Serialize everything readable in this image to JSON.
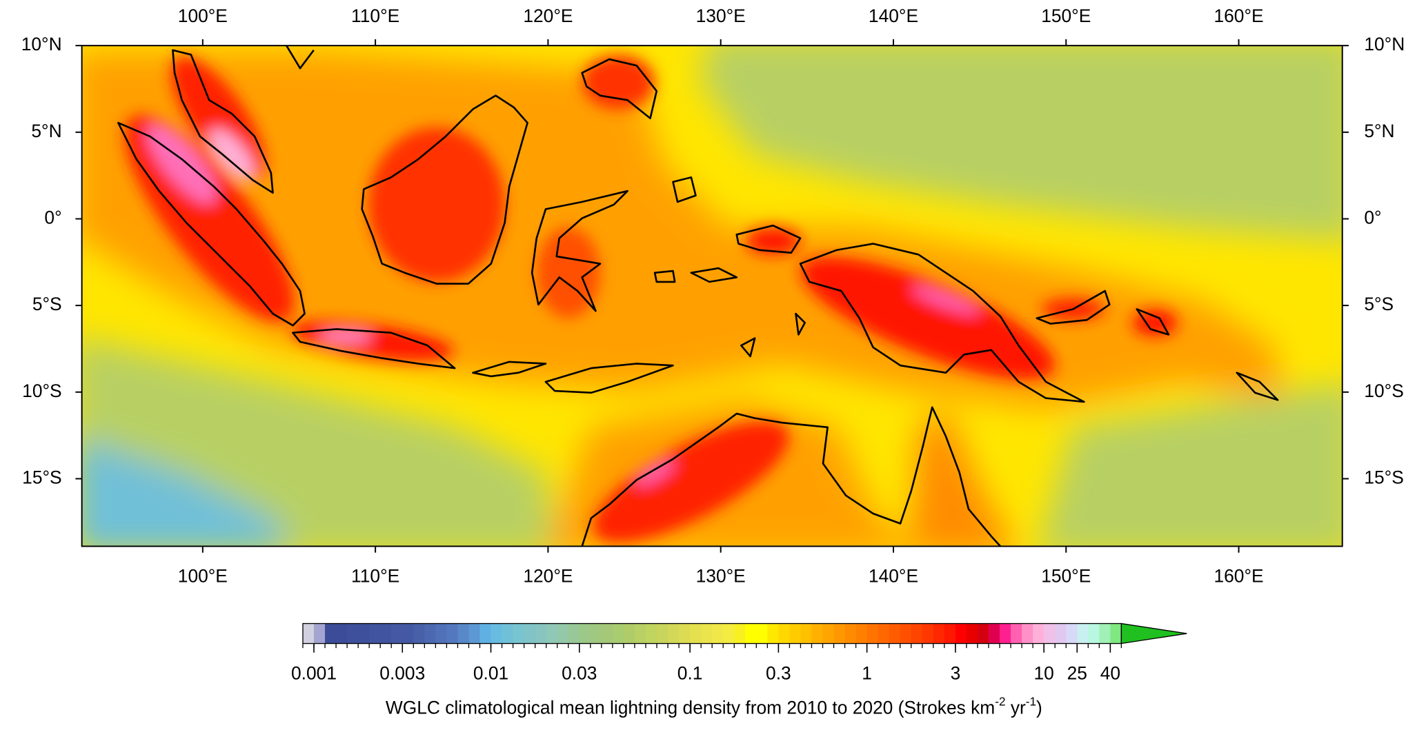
{
  "map": {
    "xlim": [
      93,
      166
    ],
    "ylim": [
      -18.9,
      10
    ],
    "xticks": [
      {
        "value": 100,
        "label": "100°E"
      },
      {
        "value": 110,
        "label": "110°E"
      },
      {
        "value": 120,
        "label": "120°E"
      },
      {
        "value": 130,
        "label": "130°E"
      },
      {
        "value": 140,
        "label": "140°E"
      },
      {
        "value": 150,
        "label": "150°E"
      },
      {
        "value": 160,
        "label": "160°E"
      }
    ],
    "yticks": [
      {
        "value": 10,
        "label": "10°N"
      },
      {
        "value": 5,
        "label": "5°N"
      },
      {
        "value": 0,
        "label": "0°"
      },
      {
        "value": -5,
        "label": "5°S"
      },
      {
        "value": -10,
        "label": "10°S"
      },
      {
        "value": -15,
        "label": "15°S"
      }
    ]
  },
  "colorbar": {
    "title_parts": [
      "WGLC climatological mean lightning density from 2010 to 2020 (Strokes km",
      "-2",
      " yr",
      "-1",
      ")"
    ],
    "levels": [
      0.0008,
      0.001,
      0.00115,
      0.0013,
      0.0015,
      0.0017,
      0.002,
      0.0023,
      0.0026,
      0.003,
      0.0035,
      0.004,
      0.0047,
      0.0055,
      0.0063,
      0.0074,
      0.0086,
      0.01,
      0.0115,
      0.013,
      0.015,
      0.017,
      0.02,
      0.023,
      0.026,
      0.03,
      0.034,
      0.038,
      0.043,
      0.049,
      0.055,
      0.062,
      0.07,
      0.079,
      0.089,
      0.1,
      0.115,
      0.13,
      0.15,
      0.17,
      0.2,
      0.23,
      0.26,
      0.3,
      0.35,
      0.4,
      0.47,
      0.55,
      0.63,
      0.74,
      0.86,
      1,
      1.15,
      1.3,
      1.5,
      1.7,
      2,
      2.3,
      2.6,
      3,
      3.5,
      4,
      4.7,
      5.5,
      6.3,
      7.4,
      8.6,
      10,
      14,
      19,
      25,
      30,
      35,
      40,
      45
    ],
    "colors": [
      "#d0d0e0",
      "#a4a4d0",
      "#3c4c98",
      "#3c4c98",
      "#3e509c",
      "#3e509c",
      "#4054a0",
      "#4054a0",
      "#4458a4",
      "#4458a4",
      "#4860a8",
      "#4c68b0",
      "#5070b8",
      "#5478c0",
      "#5888c8",
      "#5c98d4",
      "#60b0e4",
      "#68bce0",
      "#70c0d8",
      "#78c4d0",
      "#80c4c8",
      "#88c4c0",
      "#90c8b8",
      "#94c8a8",
      "#98c898",
      "#9cc888",
      "#a0c880",
      "#a4c878",
      "#a8cc70",
      "#b0cc68",
      "#b8d064",
      "#c0d460",
      "#c8d45c",
      "#d4d858",
      "#dcdc54",
      "#e4e050",
      "#ece44c",
      "#f0e848",
      "#f4ec40",
      "#f8f020",
      "#ffff00",
      "#ffff00",
      "#ffe800",
      "#ffd800",
      "#ffcc00",
      "#ffc000",
      "#ffb000",
      "#ffa400",
      "#ff9800",
      "#ff8c00",
      "#ff8000",
      "#ff7400",
      "#ff6800",
      "#ff5c00",
      "#ff5000",
      "#ff4400",
      "#ff3800",
      "#ff2800",
      "#ff1800",
      "#ff0000",
      "#e80000",
      "#d40010",
      "#e00050",
      "#ff2090",
      "#ff60b0",
      "#ff90c8",
      "#ffb0d8",
      "#f0c0e8",
      "#e0c8f0",
      "#d8d8f8",
      "#c8f0f0",
      "#b8f8e0",
      "#a0f0b8",
      "#80e880"
    ],
    "extend_color": "#20c020",
    "ticks": [
      0.001,
      0.003,
      0.01,
      0.03,
      0.1,
      0.3,
      1,
      3,
      10,
      25,
      40
    ]
  }
}
